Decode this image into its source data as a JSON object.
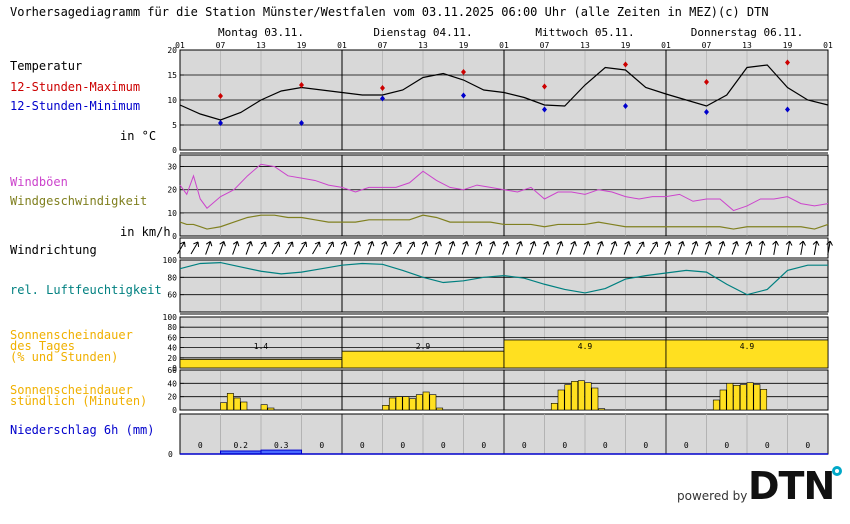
{
  "header": {
    "title": "Vorhersagediagramm für die Station Münster/Westfalen vom 03.11.2025 06:00 Uhr (alle Zeiten in MEZ)",
    "copyright": "(c) DTN"
  },
  "days": [
    "Montag 03.11.",
    "Dienstag 04.11.",
    "Mittwoch 05.11.",
    "Donnerstag 06.11."
  ],
  "hour_ticks": [
    "01",
    "07",
    "13",
    "19",
    "01",
    "07",
    "13",
    "19",
    "01",
    "07",
    "13",
    "19",
    "01",
    "07",
    "13",
    "19",
    "01"
  ],
  "labels": {
    "temperatur": "Temperatur",
    "tmax": "12-Stunden-Maximum",
    "tmin": "12-Stunden-Minimum",
    "temp_unit": "in °C",
    "boeen": "Windböen",
    "wind": "Windgeschwindigkeit",
    "wind_unit": "in km/h",
    "windrichtung": "Windrichtung",
    "feuchte": "rel. Luftfeuchtigkeit",
    "sonne_tag_1": "Sonnenscheindauer",
    "sonne_tag_2": "des Tages",
    "sonne_tag_3": "(% und Stunden)",
    "sonne_std_1": "Sonnenscheindauer",
    "sonne_std_2": "stündlich (Minuten)",
    "niederschlag": "Niederschlag 6h (mm)"
  },
  "footer": {
    "powered_by": "powered by",
    "brand": "DTN"
  },
  "colors": {
    "panel_bg": "#d8d8d8",
    "tmax": "#cc0000",
    "tmin": "#0000cc",
    "gust": "#cc44cc",
    "wind": "#808020",
    "humidity": "#008080",
    "sun": "#f0b000",
    "sun_fill": "#ffe020",
    "precip": "#0000cc",
    "precip_fill": "#4a6cff"
  },
  "chart_data": [
    {
      "type": "line",
      "name": "temperature",
      "ylim": [
        0,
        20
      ],
      "yticks": [
        0,
        5,
        10,
        15,
        20
      ],
      "x_hours": [
        0,
        3,
        6,
        9,
        12,
        15,
        18,
        21,
        24,
        27,
        30,
        33,
        36,
        39,
        42,
        45,
        48,
        51,
        54,
        57,
        60,
        63,
        66,
        69,
        72,
        75,
        78,
        81,
        84,
        87,
        90,
        93,
        96
      ],
      "values": [
        9,
        7.2,
        6,
        7.5,
        10,
        11.8,
        12.5,
        12,
        11.5,
        11,
        11,
        12,
        14.5,
        15.3,
        14,
        12,
        11.5,
        10.5,
        9,
        8.8,
        13,
        16.5,
        16,
        12.5,
        11.2,
        10,
        8.8,
        11,
        16.5,
        17,
        12.5,
        10,
        9
      ],
      "max_points": [
        {
          "h": 6,
          "v": 10.8
        },
        {
          "h": 18,
          "v": 13
        },
        {
          "h": 30,
          "v": 12.4
        },
        {
          "h": 42,
          "v": 15.6
        },
        {
          "h": 54,
          "v": 12.7
        },
        {
          "h": 66,
          "v": 17.1
        },
        {
          "h": 78,
          "v": 13.6
        },
        {
          "h": 90,
          "v": 17.5
        }
      ],
      "min_points": [
        {
          "h": 6,
          "v": 5.4
        },
        {
          "h": 18,
          "v": 5.4
        },
        {
          "h": 30,
          "v": 10.3
        },
        {
          "h": 42,
          "v": 10.9
        },
        {
          "h": 54,
          "v": 8.1
        },
        {
          "h": 66,
          "v": 8.8
        },
        {
          "h": 78,
          "v": 7.6
        },
        {
          "h": 90,
          "v": 8.1
        }
      ]
    },
    {
      "type": "line",
      "name": "wind",
      "ylim": [
        0,
        35
      ],
      "yticks": [
        0,
        10,
        20,
        30
      ],
      "x_hours": [
        0,
        1,
        2,
        3,
        4,
        6,
        8,
        10,
        12,
        14,
        16,
        18,
        20,
        22,
        24,
        26,
        28,
        30,
        32,
        34,
        36,
        38,
        40,
        42,
        44,
        46,
        48,
        50,
        52,
        54,
        56,
        58,
        60,
        62,
        64,
        66,
        68,
        70,
        72,
        74,
        76,
        78,
        80,
        82,
        84,
        86,
        88,
        90,
        92,
        94,
        96
      ],
      "gust_values": [
        22,
        18,
        26,
        16,
        12,
        17,
        20,
        26,
        31,
        30,
        26,
        25,
        24,
        22,
        21,
        19,
        21,
        21,
        21,
        23,
        28,
        24,
        21,
        20,
        22,
        21,
        20,
        19,
        21,
        16,
        19,
        19,
        18,
        20,
        19,
        17,
        16,
        17,
        17,
        18,
        15,
        16,
        16,
        11,
        13,
        16,
        16,
        17,
        14,
        13,
        14
      ],
      "wind_values": [
        6,
        5,
        5,
        4,
        3,
        4,
        6,
        8,
        9,
        9,
        8,
        8,
        7,
        6,
        6,
        6,
        7,
        7,
        7,
        7,
        9,
        8,
        6,
        6,
        6,
        6,
        5,
        5,
        5,
        4,
        5,
        5,
        5,
        6,
        5,
        4,
        4,
        4,
        4,
        4,
        4,
        4,
        4,
        3,
        4,
        4,
        4,
        4,
        4,
        3,
        5
      ]
    },
    {
      "type": "line",
      "name": "humidity",
      "ylim": [
        40,
        100
      ],
      "yticks": [
        60,
        80,
        100
      ],
      "x_hours": [
        0,
        3,
        6,
        9,
        12,
        15,
        18,
        21,
        24,
        27,
        30,
        33,
        36,
        39,
        42,
        45,
        48,
        51,
        54,
        57,
        60,
        63,
        66,
        69,
        72,
        75,
        78,
        81,
        84,
        87,
        90,
        93,
        96
      ],
      "values": [
        90,
        96,
        97,
        92,
        87,
        84,
        86,
        90,
        94,
        96,
        95,
        88,
        80,
        74,
        76,
        80,
        82,
        79,
        72,
        66,
        62,
        67,
        78,
        82,
        85,
        88,
        86,
        72,
        60,
        66,
        88,
        94,
        94
      ]
    },
    {
      "type": "bar",
      "name": "sun_daily",
      "ylim": [
        0,
        100
      ],
      "yticks": [
        0,
        20,
        40,
        60,
        80,
        100
      ],
      "percent": [
        17,
        33,
        55,
        55
      ],
      "hours_labels": [
        "1.4",
        "2.9",
        "4.9",
        "4.9"
      ]
    },
    {
      "type": "bar",
      "name": "sun_hourly",
      "ylim": [
        0,
        60
      ],
      "yticks": [
        0,
        20,
        40,
        60
      ],
      "start_hours": [
        5,
        6,
        7,
        8,
        9,
        10,
        11,
        12,
        13,
        14,
        15,
        16,
        17,
        18
      ],
      "minutes": [
        [
          0,
          11,
          25,
          18,
          12,
          0,
          0,
          8,
          3,
          0,
          0,
          0,
          0,
          0
        ],
        [
          0,
          7,
          18,
          20,
          20,
          17,
          23,
          27,
          23,
          3,
          0,
          0,
          0,
          0
        ],
        [
          0,
          0,
          10,
          30,
          38,
          43,
          44,
          41,
          33,
          2,
          0,
          0,
          0,
          0
        ],
        [
          0,
          0,
          15,
          30,
          40,
          37,
          38,
          41,
          38,
          31,
          0,
          0,
          0,
          0
        ]
      ]
    },
    {
      "type": "bar",
      "name": "precip_6h",
      "ylim": [
        0,
        10
      ],
      "blocks": [
        {
          "h0": 0,
          "h1": 6,
          "v": 0,
          "label": "0"
        },
        {
          "h0": 6,
          "h1": 12,
          "v": 0.2,
          "label": "0.2"
        },
        {
          "h0": 12,
          "h1": 18,
          "v": 0.3,
          "label": "0.3"
        },
        {
          "h0": 18,
          "h1": 24,
          "v": 0,
          "label": "0"
        },
        {
          "h0": 24,
          "h1": 30,
          "v": 0,
          "label": "0"
        },
        {
          "h0": 30,
          "h1": 36,
          "v": 0,
          "label": "0"
        },
        {
          "h0": 36,
          "h1": 42,
          "v": 0,
          "label": "0"
        },
        {
          "h0": 42,
          "h1": 48,
          "v": 0,
          "label": "0"
        },
        {
          "h0": 48,
          "h1": 54,
          "v": 0,
          "label": "0"
        },
        {
          "h0": 54,
          "h1": 60,
          "v": 0,
          "label": "0"
        },
        {
          "h0": 60,
          "h1": 66,
          "v": 0,
          "label": "0"
        },
        {
          "h0": 66,
          "h1": 72,
          "v": 0,
          "label": "0"
        },
        {
          "h0": 72,
          "h1": 78,
          "v": 0,
          "label": "0"
        },
        {
          "h0": 78,
          "h1": 84,
          "v": 0,
          "label": "0"
        },
        {
          "h0": 84,
          "h1": 90,
          "v": 0,
          "label": "0"
        },
        {
          "h0": 90,
          "h1": 96,
          "v": 0,
          "label": "0"
        }
      ]
    },
    {
      "type": "scatter",
      "name": "wind_direction",
      "directions_deg": [
        210,
        210,
        200,
        200,
        200,
        200,
        210,
        210,
        210,
        210,
        210,
        210,
        200,
        200,
        200,
        200,
        210,
        210,
        200,
        200,
        200,
        200,
        200,
        200,
        200,
        200,
        200,
        200,
        200,
        200,
        200,
        200,
        200,
        200,
        210,
        210,
        200,
        200,
        200,
        200,
        200,
        200,
        200,
        190,
        190,
        190,
        190,
        190,
        190
      ]
    }
  ]
}
